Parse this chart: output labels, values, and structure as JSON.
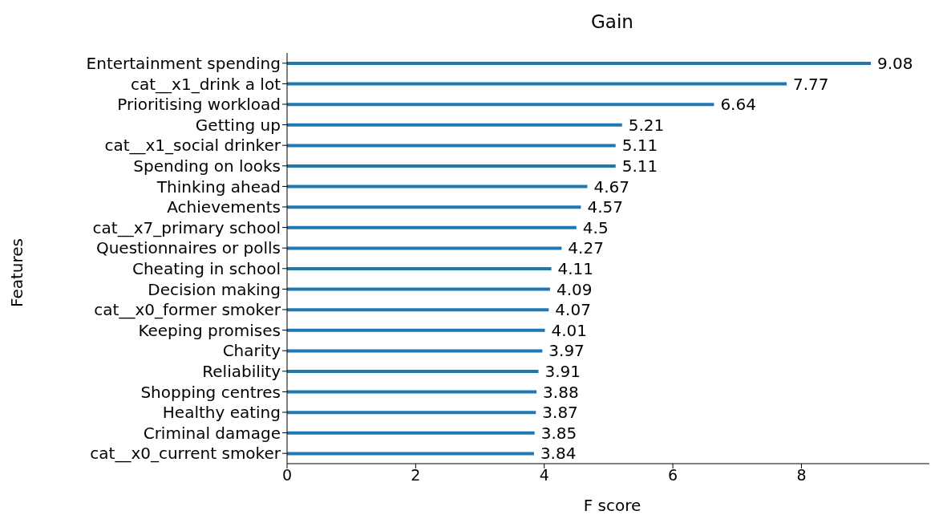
{
  "chart_data": {
    "type": "bar",
    "orientation": "horizontal",
    "title": "Gain",
    "xlabel": "F score",
    "ylabel": "Features",
    "categories": [
      "Entertainment spending",
      "cat__x1_drink a lot",
      "Prioritising workload",
      "Getting up",
      "cat__x1_social drinker",
      "Spending on looks",
      "Thinking ahead",
      "Achievements",
      "cat__x7_primary school",
      "Questionnaires or polls",
      "Cheating in school",
      "Decision making",
      "cat__x0_former smoker",
      "Keeping promises",
      "Charity",
      "Reliability",
      "Shopping centres",
      "Healthy eating",
      "Criminal damage",
      "cat__x0_current smoker"
    ],
    "values": [
      9.08,
      7.77,
      6.64,
      5.21,
      5.11,
      5.11,
      4.67,
      4.57,
      4.5,
      4.27,
      4.11,
      4.09,
      4.07,
      4.01,
      3.97,
      3.91,
      3.88,
      3.87,
      3.85,
      3.84
    ],
    "color": "#1f77b4",
    "xlim": [
      0,
      9.99
    ],
    "xticks": [
      0,
      2,
      4,
      6,
      8
    ],
    "data_labels": true
  }
}
